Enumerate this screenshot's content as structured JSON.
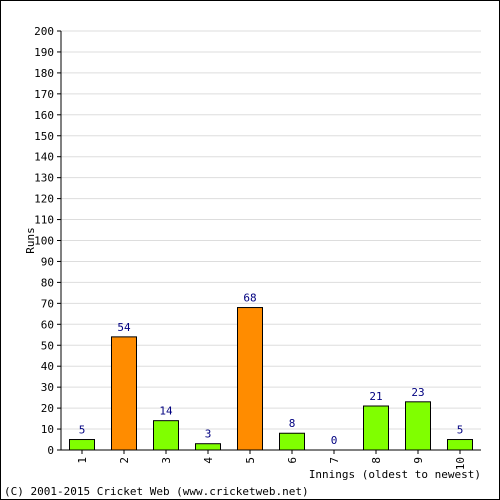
{
  "chart_data": {
    "type": "bar",
    "ylabel": "Runs",
    "xlabel": "Innings (oldest to newest)",
    "ylim": [
      0,
      200
    ],
    "ytick_step": 10,
    "grid": true,
    "categories": [
      "1",
      "2",
      "3",
      "4",
      "5",
      "6",
      "7",
      "8",
      "9",
      "10"
    ],
    "values": [
      5,
      54,
      14,
      3,
      68,
      8,
      0,
      21,
      23,
      5
    ],
    "highlight": [
      false,
      true,
      false,
      false,
      true,
      false,
      false,
      false,
      false,
      false
    ],
    "colors": {
      "normal": "#80ff00",
      "highlight": "#ff8c00",
      "label": "#000080",
      "grid": "#dddddd"
    }
  },
  "footer": {
    "copyright": "(C) 2001-2015 Cricket Web (www.cricketweb.net)"
  }
}
